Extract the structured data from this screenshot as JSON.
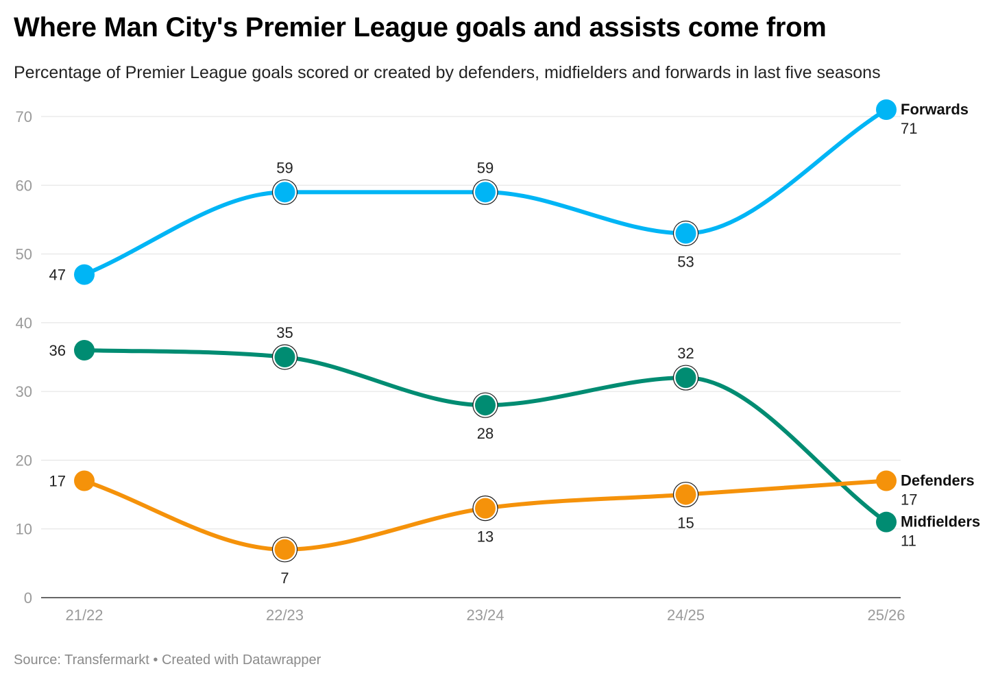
{
  "header": {
    "title": "Where Man City's Premier League goals and assists come from",
    "subtitle": "Percentage of Premier League goals scored or created by defenders, midfielders and forwards in last five seasons"
  },
  "footer": {
    "source_text": "Source: Transfermarkt",
    "separator": "•",
    "credit_text": "Created with Datawrapper"
  },
  "chart_data": {
    "type": "line",
    "title": "Where Man City's Premier League goals and assists come from",
    "subtitle": "Percentage of Premier League goals scored or created by defenders, midfielders and forwards in last five seasons",
    "xlabel": "",
    "ylabel": "",
    "categories": [
      "21/22",
      "22/23",
      "23/24",
      "24/25",
      "25/26"
    ],
    "ylim": [
      0,
      70
    ],
    "yticks": [
      0,
      10,
      20,
      30,
      40,
      50,
      60,
      70
    ],
    "grid": true,
    "legend": "direct labels at line ends (right)",
    "series": [
      {
        "name": "Forwards",
        "color": "#00b5f5",
        "values": [
          47,
          59,
          59,
          53,
          71
        ],
        "label_positions": [
          "left",
          "above",
          "above",
          "below",
          "end"
        ]
      },
      {
        "name": "Midfielders",
        "color": "#008c72",
        "values": [
          36,
          35,
          28,
          32,
          11
        ],
        "label_positions": [
          "left",
          "above",
          "below",
          "above",
          "end"
        ]
      },
      {
        "name": "Defenders",
        "color": "#f5920a",
        "values": [
          17,
          7,
          13,
          15,
          17
        ],
        "label_positions": [
          "left",
          "below",
          "below",
          "below",
          "end"
        ]
      }
    ]
  }
}
